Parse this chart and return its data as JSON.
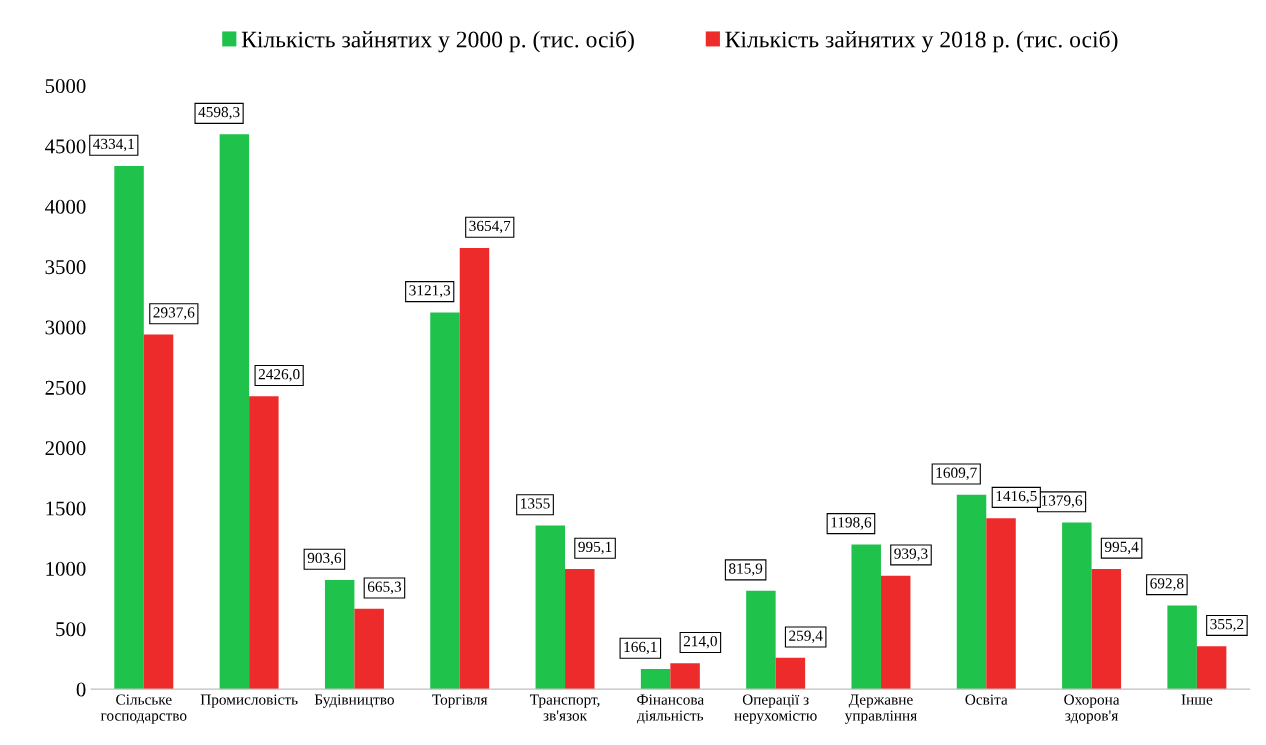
{
  "chart_data": {
    "type": "bar",
    "categories": [
      "Сільське\nгосподарство",
      "Промисловість",
      "Будівництво",
      "Торгівля",
      "Транспорт,\nзв'язок",
      "Фінансова\nдіяльність",
      "Операції з\nнерухомістю",
      "Державне\nуправління",
      "Освіта",
      "Охорона\nздоров'я",
      "Інше"
    ],
    "series": [
      {
        "name": "Кількість зайнятих у 2000 р. (тис. осіб)",
        "color": "#1fc24a",
        "values": [
          4334.1,
          4598.3,
          903.6,
          3121.3,
          1355,
          166.1,
          815.9,
          1198.6,
          1609.7,
          1379.6,
          692.8
        ],
        "value_labels": [
          "4334,1",
          "4598,3",
          "903,6",
          "3121,3",
          "1355",
          "166,1",
          "815,9",
          "1198,6",
          "1609,7",
          "1379,6",
          "692,8"
        ]
      },
      {
        "name": "Кількість зайнятих у 2018 р. (тис. осіб)",
        "color": "#ee2b2b",
        "values": [
          2937.6,
          2426.0,
          665.3,
          3654.7,
          995.1,
          214.0,
          259.4,
          939.3,
          1416.5,
          995.4,
          355.2
        ],
        "value_labels": [
          "2937,6",
          "2426,0",
          "665,3",
          "3654,7",
          "995,1",
          "214,0",
          "259,4",
          "939,3",
          "1416,5",
          "995,4",
          "355,2"
        ]
      }
    ],
    "ylim": [
      0,
      5000
    ],
    "yticks": [
      0,
      500,
      1000,
      1500,
      2000,
      2500,
      3000,
      3500,
      4000,
      4500,
      5000
    ],
    "grid": false,
    "legend": "top"
  }
}
